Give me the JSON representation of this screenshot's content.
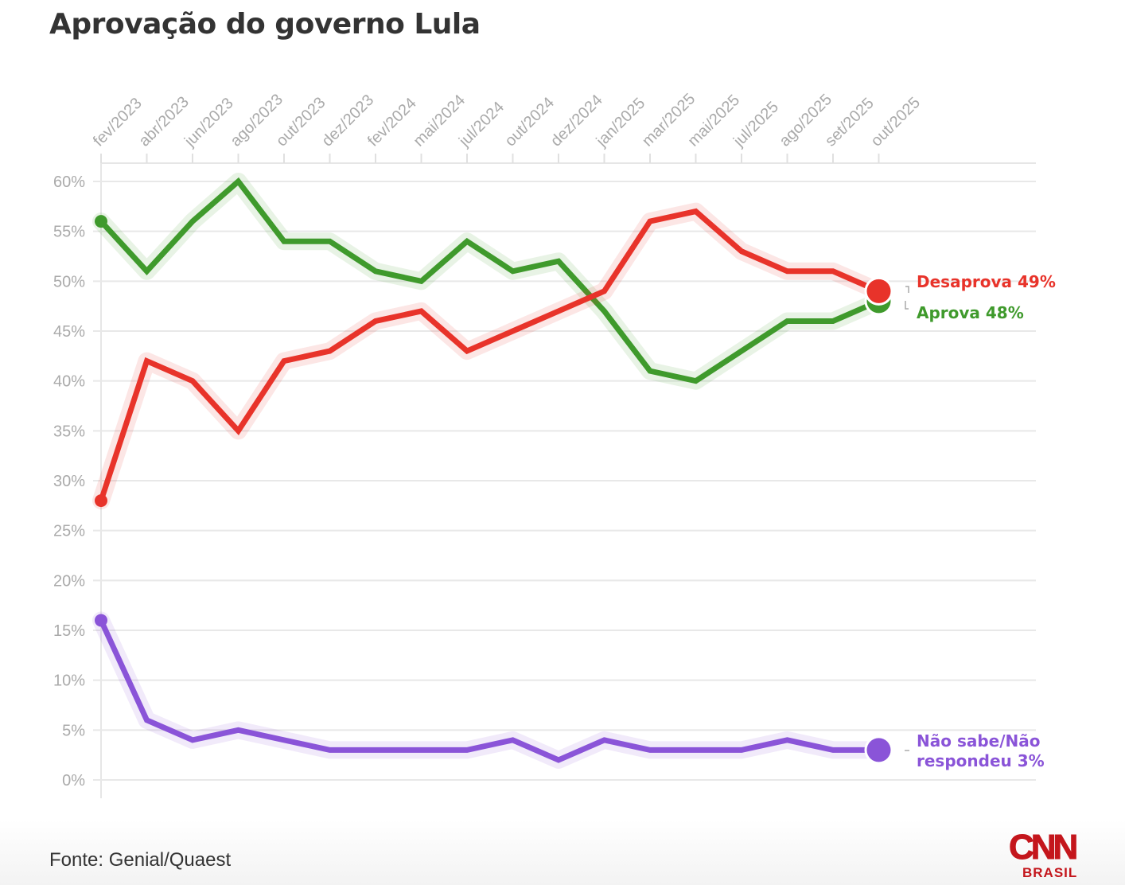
{
  "title": "Aprovação do governo Lula",
  "source": "Fonte: Genial/Quaest",
  "logo": {
    "name": "CNN",
    "sub": "BRASIL",
    "color": "#c4161c"
  },
  "chart_data": {
    "type": "line",
    "title": "Aprovação do governo Lula",
    "xlabel": "",
    "ylabel": "",
    "x": [
      "fev/2023",
      "abr/2023",
      "jun/2023",
      "ago/2023",
      "out/2023",
      "dez/2023",
      "fev/2024",
      "mai/2024",
      "jul/2024",
      "out/2024",
      "dez/2024",
      "jan/2025",
      "mar/2025",
      "mai/2025",
      "jul/2025",
      "ago/2025",
      "set/2025",
      "out/2025"
    ],
    "ylim": [
      0,
      60
    ],
    "yticks": [
      0,
      5,
      10,
      15,
      20,
      25,
      30,
      35,
      40,
      45,
      50,
      55,
      60
    ],
    "ytick_labels": [
      "0%",
      "5%",
      "10%",
      "15%",
      "20%",
      "25%",
      "30%",
      "35%",
      "40%",
      "45%",
      "50%",
      "55%",
      "60%"
    ],
    "grid": true,
    "x_axis_position": "top",
    "legend": "direct labels at right end",
    "series": [
      {
        "name": "Aprova",
        "label": "Aprova 48%",
        "color": "#3f9a2c",
        "values": [
          56,
          51,
          56,
          60,
          54,
          54,
          51,
          50,
          54,
          51,
          52,
          47,
          41,
          40,
          43,
          46,
          46,
          48
        ]
      },
      {
        "name": "Desaprova",
        "label": "Desaprova 49%",
        "color": "#e8332a",
        "values": [
          28,
          42,
          40,
          35,
          42,
          43,
          46,
          47,
          43,
          45,
          47,
          49,
          56,
          57,
          53,
          51,
          51,
          49
        ]
      },
      {
        "name": "Não sabe/Não respondeu",
        "label": "Não sabe/Não respondeu 3%",
        "label_lines": [
          "Não sabe/Não",
          "respondeu 3%"
        ],
        "color": "#8a54d8",
        "values": [
          16,
          6,
          4,
          5,
          4,
          3,
          3,
          3,
          3,
          4,
          2,
          4,
          3,
          3,
          3,
          4,
          3,
          3
        ]
      }
    ]
  }
}
